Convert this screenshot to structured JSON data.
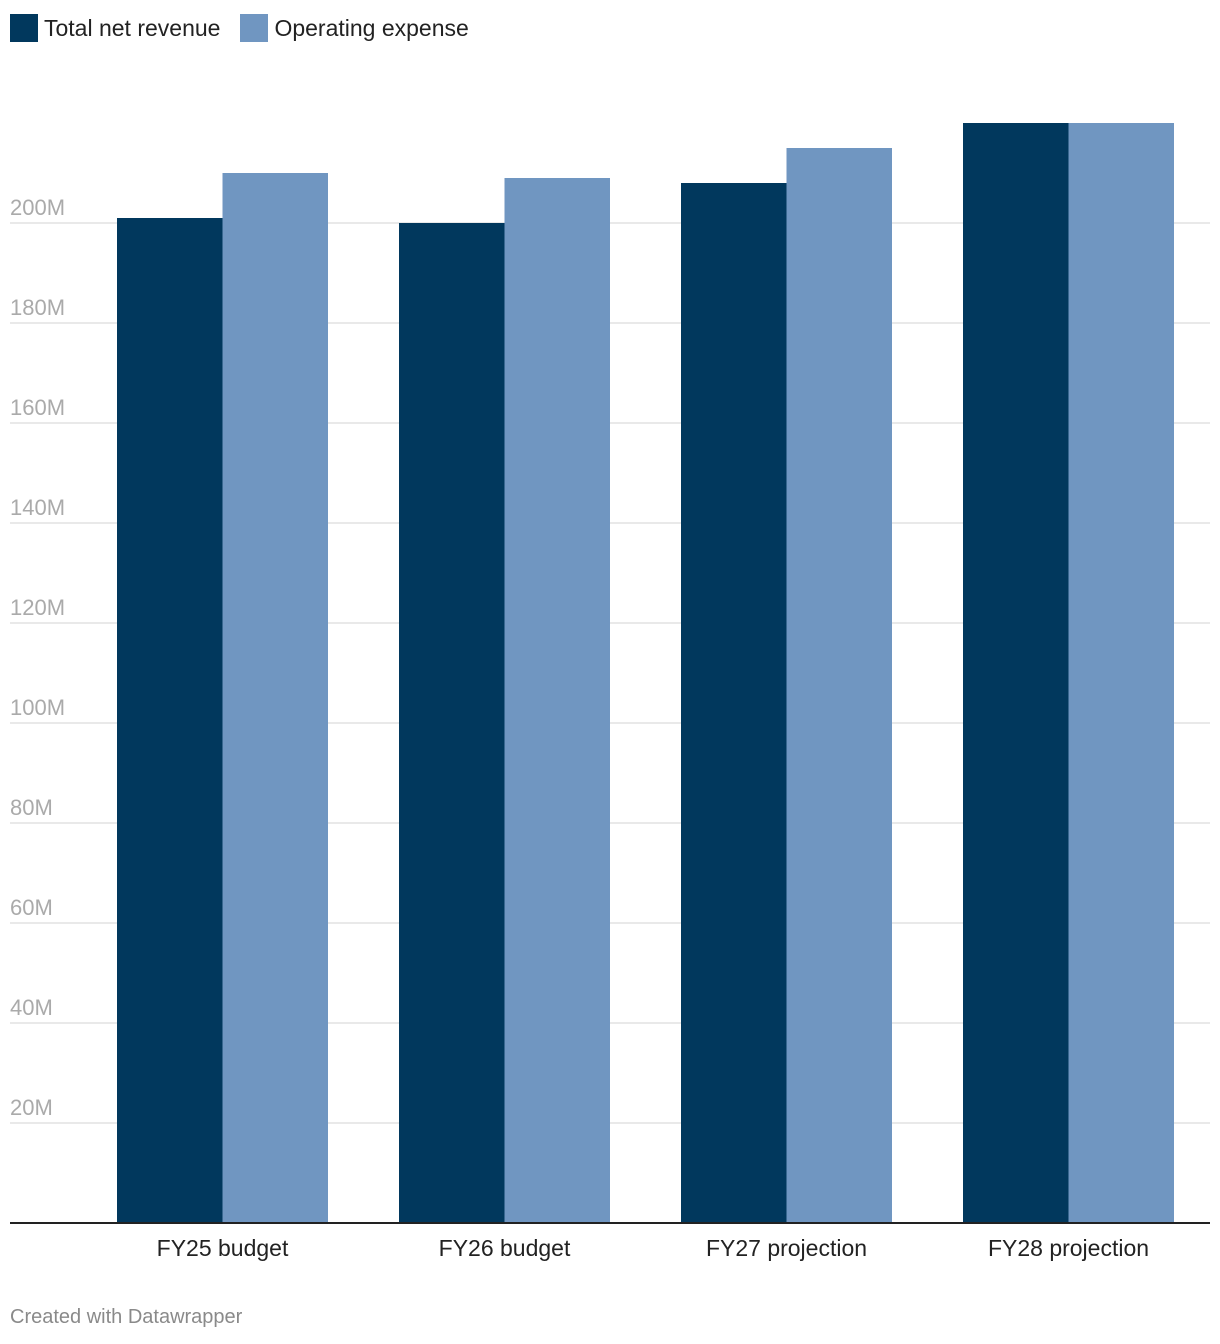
{
  "colors": {
    "revenue": "#01385d",
    "expense": "#7096c1",
    "grid": "#e2e2e2",
    "axis": "#222222",
    "tick_label": "#aaaaaa",
    "category_label": "#222222"
  },
  "legend": [
    {
      "label": "Total net revenue",
      "color": "#01385d"
    },
    {
      "label": "Operating expense",
      "color": "#7096c1"
    }
  ],
  "credit": "Created with Datawrapper",
  "chart_data": {
    "type": "bar",
    "title": "",
    "xlabel": "",
    "ylabel": "",
    "categories": [
      "FY25 budget",
      "FY26 budget",
      "FY27 projection",
      "FY28 projection"
    ],
    "series": [
      {
        "name": "Total net revenue",
        "values": [
          201,
          200,
          208,
          220
        ]
      },
      {
        "name": "Operating expense",
        "values": [
          210,
          209,
          215,
          220
        ]
      }
    ],
    "ylim": [
      0,
      220
    ],
    "yticks": [
      20,
      40,
      60,
      80,
      100,
      120,
      140,
      160,
      180,
      200
    ],
    "ytick_labels": [
      "20M",
      "40M",
      "60M",
      "80M",
      "100M",
      "120M",
      "140M",
      "160M",
      "180M",
      "200M"
    ],
    "grid": true,
    "legend_position": "top-left"
  }
}
